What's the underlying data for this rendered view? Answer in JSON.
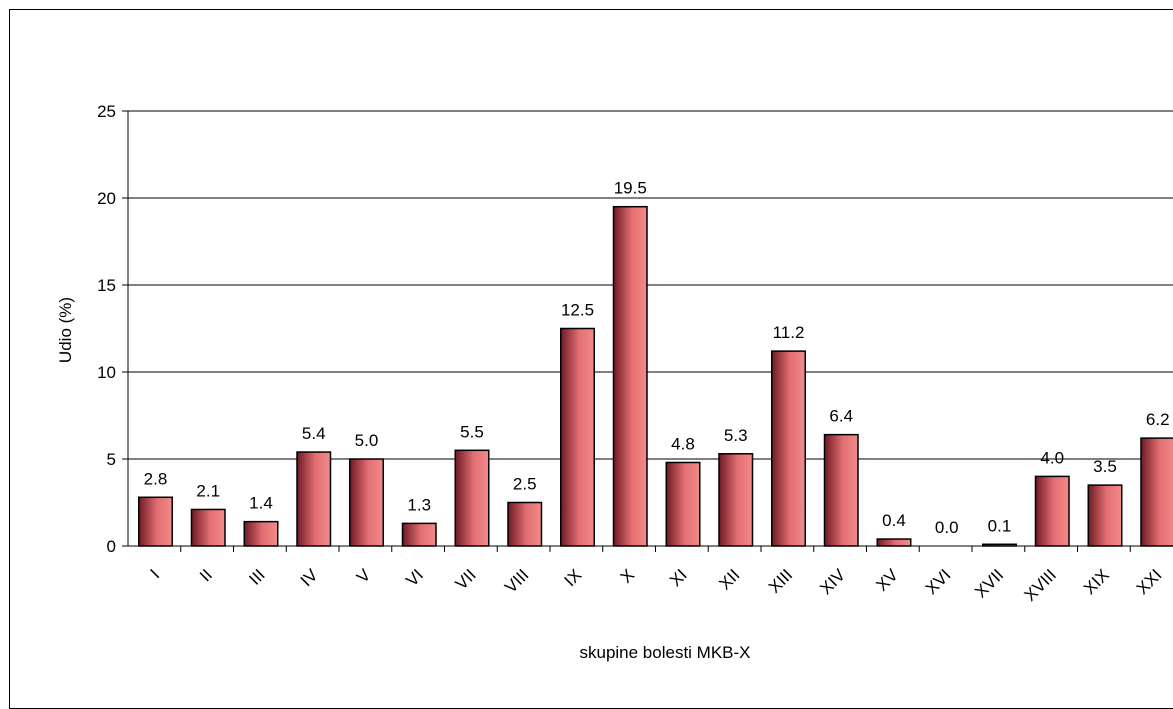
{
  "chart_data": {
    "type": "bar",
    "title": "",
    "xlabel": "skupine bolesti MKB-X",
    "ylabel": "Udio (%)",
    "ylim": [
      0,
      25
    ],
    "yticks": [
      "0",
      "5",
      "10",
      "15",
      "20",
      "25"
    ],
    "grid": true,
    "legend": "none",
    "categories": [
      "I",
      "II",
      "III",
      "IV",
      "V",
      "VI",
      "VII",
      "VIII",
      "IX",
      "X",
      "XI",
      "XII",
      "XIII",
      "XIV",
      "XV",
      "XVI",
      "XVII",
      "XVIII",
      "XIX",
      "XXI"
    ],
    "values": [
      2.8,
      2.1,
      1.4,
      5.4,
      5.0,
      1.3,
      5.5,
      2.5,
      12.5,
      19.5,
      4.8,
      5.3,
      11.2,
      6.4,
      0.4,
      0.0,
      0.1,
      4.0,
      3.5,
      6.2
    ],
    "value_labels": [
      "2.8",
      "2.1",
      "1.4",
      "5.4",
      "5.0",
      "1.3",
      "5.5",
      "2.5",
      "12.5",
      "19.5",
      "4.8",
      "5.3",
      "11.2",
      "6.4",
      "0.4",
      "0.0",
      "0.1",
      "4.0",
      "3.5",
      "6.2"
    ],
    "colors": {
      "bar_light": "#f08080",
      "bar_dark": "#6e1a24",
      "grid": "#000000",
      "axis": "#000000"
    }
  }
}
